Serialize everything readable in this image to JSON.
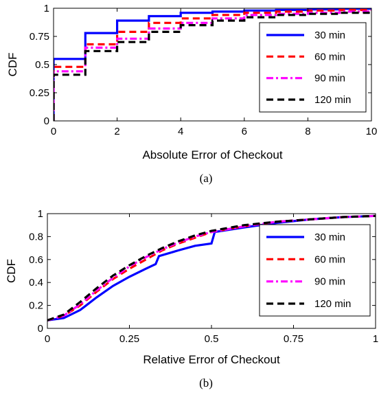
{
  "colors": {
    "30 min": "#0000ff",
    "60 min": "#ff0000",
    "90 min": "#ff00ff",
    "120 min": "#000000"
  },
  "chart_data": [
    {
      "type": "line",
      "caption": "(a)",
      "xlabel": "Absolute Error of Checkout",
      "ylabel": "CDF",
      "xlim": [
        0,
        10
      ],
      "ylim": [
        0,
        1
      ],
      "xticks": [
        "0",
        "2",
        "4",
        "6",
        "8",
        "10"
      ],
      "yticks": [
        "0",
        "0.25",
        "0.5",
        "0.75",
        "1"
      ],
      "grid": false,
      "legend": "top-right",
      "step": true,
      "series": [
        {
          "name": "30 min",
          "style": "solid",
          "x": [
            0,
            1,
            2,
            3,
            4,
            5,
            6,
            7,
            8,
            9,
            10
          ],
          "y": [
            0.55,
            0.78,
            0.89,
            0.93,
            0.96,
            0.97,
            0.98,
            0.985,
            0.99,
            0.995,
            1.0
          ]
        },
        {
          "name": "60 min",
          "style": "dashed",
          "x": [
            0,
            1,
            2,
            3,
            4,
            5,
            6,
            7,
            8,
            9,
            10
          ],
          "y": [
            0.48,
            0.68,
            0.79,
            0.87,
            0.91,
            0.94,
            0.96,
            0.97,
            0.98,
            0.985,
            0.99
          ]
        },
        {
          "name": "90 min",
          "style": "dashdot",
          "x": [
            0,
            1,
            2,
            3,
            4,
            5,
            6,
            7,
            8,
            9,
            10
          ],
          "y": [
            0.44,
            0.65,
            0.73,
            0.82,
            0.87,
            0.91,
            0.94,
            0.95,
            0.96,
            0.97,
            0.98
          ]
        },
        {
          "name": "120 min",
          "style": "dashed",
          "x": [
            0,
            1,
            2,
            3,
            4,
            5,
            6,
            7,
            8,
            9,
            10
          ],
          "y": [
            0.41,
            0.62,
            0.7,
            0.79,
            0.85,
            0.89,
            0.92,
            0.94,
            0.95,
            0.96,
            0.97
          ]
        }
      ]
    },
    {
      "type": "line",
      "caption": "(b)",
      "xlabel": "Relative Error of Checkout",
      "ylabel": "CDF",
      "xlim": [
        0,
        1
      ],
      "ylim": [
        0,
        1
      ],
      "xticks": [
        "0",
        "0.25",
        "0.5",
        "0.75",
        "1"
      ],
      "yticks": [
        "0",
        "0.2",
        "0.4",
        "0.6",
        "0.8",
        "1"
      ],
      "grid": false,
      "legend": "top-right",
      "step": false,
      "series": [
        {
          "name": "30 min",
          "style": "solid",
          "x": [
            0,
            0.05,
            0.1,
            0.15,
            0.2,
            0.25,
            0.3,
            0.33,
            0.34,
            0.4,
            0.45,
            0.5,
            0.51,
            0.6,
            0.7,
            0.8,
            0.9,
            1.0
          ],
          "y": [
            0.07,
            0.09,
            0.16,
            0.27,
            0.37,
            0.45,
            0.52,
            0.56,
            0.63,
            0.68,
            0.72,
            0.74,
            0.84,
            0.88,
            0.92,
            0.95,
            0.97,
            0.98
          ]
        },
        {
          "name": "60 min",
          "style": "dashed",
          "x": [
            0,
            0.05,
            0.1,
            0.15,
            0.2,
            0.25,
            0.3,
            0.35,
            0.4,
            0.45,
            0.5,
            0.6,
            0.7,
            0.8,
            0.9,
            1.0
          ],
          "y": [
            0.07,
            0.11,
            0.2,
            0.32,
            0.43,
            0.52,
            0.6,
            0.68,
            0.74,
            0.79,
            0.84,
            0.89,
            0.93,
            0.95,
            0.97,
            0.98
          ]
        },
        {
          "name": "90 min",
          "style": "dashdot",
          "x": [
            0,
            0.05,
            0.1,
            0.15,
            0.2,
            0.25,
            0.3,
            0.35,
            0.4,
            0.45,
            0.5,
            0.6,
            0.7,
            0.8,
            0.9,
            1.0
          ],
          "y": [
            0.07,
            0.11,
            0.21,
            0.33,
            0.44,
            0.54,
            0.62,
            0.69,
            0.75,
            0.8,
            0.84,
            0.89,
            0.93,
            0.95,
            0.97,
            0.98
          ]
        },
        {
          "name": "120 min",
          "style": "dashed",
          "x": [
            0,
            0.05,
            0.1,
            0.15,
            0.2,
            0.25,
            0.3,
            0.35,
            0.4,
            0.45,
            0.5,
            0.6,
            0.7,
            0.8,
            0.9,
            1.0
          ],
          "y": [
            0.07,
            0.12,
            0.23,
            0.35,
            0.46,
            0.55,
            0.63,
            0.7,
            0.76,
            0.81,
            0.85,
            0.9,
            0.93,
            0.95,
            0.97,
            0.98
          ]
        }
      ]
    }
  ]
}
